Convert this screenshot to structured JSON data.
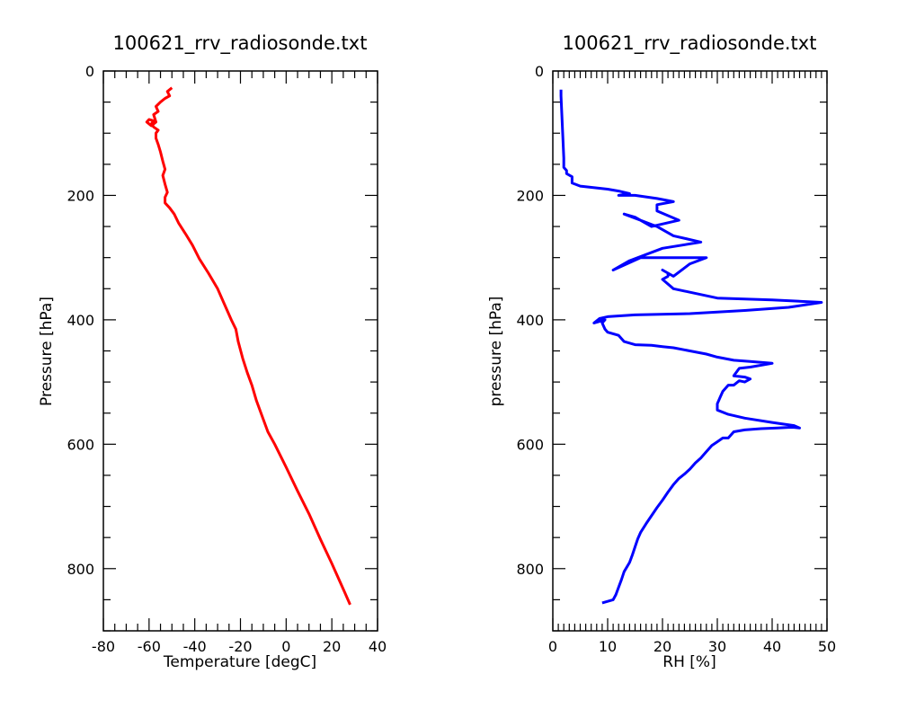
{
  "chart_data": [
    {
      "type": "line",
      "title": "100621_rrv_radiosonde.txt",
      "xlabel": "Temperature [degC]",
      "ylabel": "Pressure [hPa]",
      "xlim": [
        -80,
        40
      ],
      "ylim": [
        900,
        0
      ],
      "y_inverted": true,
      "xticks": [
        "-80",
        "-60",
        "-40",
        "-20",
        "0",
        "20",
        "40"
      ],
      "yticks": [
        "0",
        "200",
        "400",
        "600",
        "800"
      ],
      "grid": false,
      "line_color": "#ff0000",
      "series": [
        {
          "x": [
            28,
            25,
            20,
            15,
            10,
            5,
            0,
            -5,
            -8,
            -10,
            -13,
            -15,
            -17,
            -19,
            -21,
            -22,
            -24,
            -27,
            -30,
            -34,
            -38,
            -41,
            -44,
            -47,
            -49,
            -51,
            -53,
            -53,
            -52,
            -53,
            -54,
            -53,
            -54,
            -55,
            -56,
            -57,
            -57,
            -56,
            -58,
            -59,
            -58,
            -60,
            -61,
            -59,
            -57,
            -58,
            -56,
            -57,
            -55,
            -53,
            -51,
            -52,
            -50
          ],
          "y": [
            858,
            833,
            792,
            753,
            712,
            675,
            637,
            600,
            580,
            560,
            530,
            505,
            485,
            462,
            435,
            415,
            400,
            375,
            350,
            325,
            302,
            280,
            262,
            245,
            230,
            220,
            212,
            203,
            195,
            182,
            168,
            158,
            145,
            130,
            118,
            108,
            100,
            95,
            90,
            85,
            80,
            78,
            82,
            88,
            82,
            70,
            65,
            57,
            50,
            44,
            40,
            33,
            27
          ]
        }
      ]
    },
    {
      "type": "line",
      "title": "100621_rrv_radiosonde.txt",
      "xlabel": "RH [%]",
      "ylabel": "pressure [hPa]",
      "xlim": [
        0,
        50
      ],
      "ylim": [
        900,
        0
      ],
      "y_inverted": true,
      "xticks": [
        "0",
        "10",
        "20",
        "30",
        "40",
        "50"
      ],
      "yticks": [
        "0",
        "200",
        "400",
        "600",
        "800"
      ],
      "grid": false,
      "line_color": "#0000ff",
      "series": [
        {
          "x": [
            9,
            11,
            11.5,
            12,
            12.5,
            13,
            14,
            14.5,
            15,
            15.5,
            16,
            17,
            18,
            19,
            20,
            21,
            22,
            23,
            24,
            25,
            26,
            27,
            28,
            29,
            30,
            31,
            32,
            33,
            35,
            38,
            41,
            43,
            44,
            45,
            44,
            40,
            35,
            32,
            30,
            30,
            30.5,
            31,
            32,
            33,
            34,
            35,
            36,
            35,
            33,
            34,
            36,
            40,
            36,
            33,
            30,
            28,
            25,
            22,
            20,
            18,
            15,
            13,
            12,
            10,
            9.5,
            9,
            9.5,
            7.5,
            8.5,
            10,
            15,
            25,
            35,
            43,
            49,
            40,
            30,
            22,
            20,
            21,
            21,
            20,
            22,
            25,
            28,
            22,
            16,
            11,
            14,
            20,
            27,
            22,
            19,
            16,
            13,
            15,
            18,
            23,
            19,
            19,
            22,
            19,
            15,
            12,
            14,
            12,
            10,
            5,
            3.5,
            3.5,
            2.5,
            2.5,
            2,
            2,
            1.5,
            1.5
          ],
          "y": [
            855,
            850,
            842,
            830,
            818,
            805,
            790,
            778,
            765,
            752,
            742,
            728,
            715,
            702,
            690,
            677,
            665,
            655,
            648,
            640,
            630,
            622,
            612,
            602,
            596,
            590,
            590,
            580,
            577,
            575,
            574,
            573,
            573,
            574,
            570,
            565,
            558,
            552,
            545,
            535,
            525,
            515,
            505,
            505,
            498,
            500,
            495,
            492,
            490,
            478,
            476,
            470,
            467,
            465,
            460,
            455,
            450,
            445,
            443,
            441,
            440,
            435,
            425,
            420,
            415,
            405,
            400,
            405,
            398,
            395,
            392,
            390,
            385,
            380,
            372,
            368,
            365,
            350,
            335,
            330,
            325,
            320,
            330,
            310,
            300,
            300,
            300,
            320,
            305,
            285,
            275,
            265,
            250,
            240,
            230,
            235,
            250,
            240,
            225,
            215,
            210,
            205,
            200,
            200,
            197,
            193,
            190,
            185,
            180,
            170,
            165,
            160,
            155,
            140,
            40,
            30
          ]
        }
      ]
    }
  ]
}
